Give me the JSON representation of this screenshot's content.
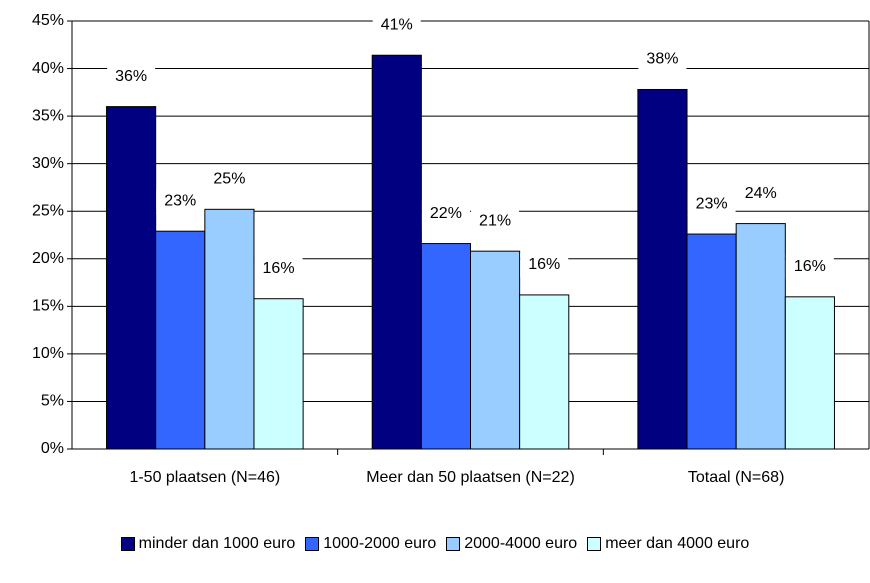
{
  "chart_data": {
    "type": "bar",
    "categories": [
      "1-50 plaatsen (N=46)",
      "Meer dan 50 plaatsen (N=22)",
      "Totaal (N=68)"
    ],
    "series": [
      {
        "name": "minder dan 1000 euro",
        "color": "#000080",
        "values": [
          36.0,
          41.4,
          37.8
        ],
        "value_labels": [
          "36%",
          "41%",
          "38%"
        ]
      },
      {
        "name": "1000-2000 euro",
        "color": "#3366ff",
        "values": [
          22.9,
          21.6,
          22.6
        ],
        "value_labels": [
          "23%",
          "22%",
          "23%"
        ]
      },
      {
        "name": "2000-4000 euro",
        "color": "#99ccff",
        "values": [
          25.2,
          20.8,
          23.7
        ],
        "value_labels": [
          "25%",
          "21%",
          "24%"
        ]
      },
      {
        "name": "meer dan 4000 euro",
        "color": "#ccffff",
        "values": [
          15.8,
          16.2,
          16.0
        ],
        "value_labels": [
          "16%",
          "16%",
          "16%"
        ]
      }
    ],
    "ylim": [
      0,
      45
    ],
    "yticks": [
      {
        "value": 0,
        "label": "0%"
      },
      {
        "value": 5,
        "label": "5%"
      },
      {
        "value": 10,
        "label": "10%"
      },
      {
        "value": 15,
        "label": "15%"
      },
      {
        "value": 20,
        "label": "20%"
      },
      {
        "value": 25,
        "label": "25%"
      },
      {
        "value": 30,
        "label": "30%"
      },
      {
        "value": 35,
        "label": "35%"
      },
      {
        "value": 40,
        "label": "40%"
      },
      {
        "value": 45,
        "label": "45%"
      }
    ],
    "grid": true,
    "legend": "bottom"
  }
}
